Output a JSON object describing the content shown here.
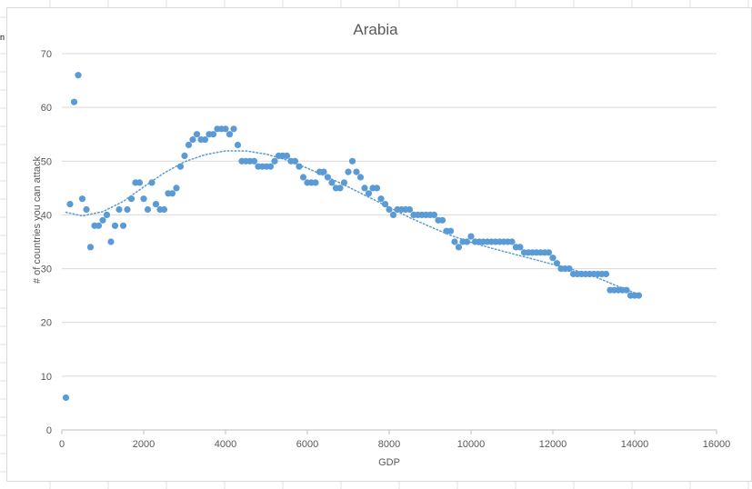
{
  "sheet": {
    "cell_fragment": "n"
  },
  "chart_data": {
    "type": "scatter",
    "title": "Arabia",
    "xlabel": "GDP",
    "ylabel": "# of countries you can attack",
    "xlim": [
      0,
      16000
    ],
    "ylim": [
      0,
      70
    ],
    "x_ticks": [
      "0",
      "2000",
      "4000",
      "6000",
      "8000",
      "10000",
      "12000",
      "14000",
      "16000"
    ],
    "y_ticks": [
      "0",
      "10",
      "20",
      "30",
      "40",
      "50",
      "60",
      "70"
    ],
    "grid": "horizontal",
    "legend": "none",
    "marker_color": "#5b9bd5",
    "trendline": {
      "style": "dotted",
      "color": "#5b9bd5",
      "kind": "polynomial"
    },
    "points": [
      [
        100,
        6
      ],
      [
        200,
        42
      ],
      [
        300,
        61
      ],
      [
        400,
        66
      ],
      [
        500,
        43
      ],
      [
        600,
        41
      ],
      [
        700,
        34
      ],
      [
        800,
        38
      ],
      [
        900,
        38
      ],
      [
        1000,
        39
      ],
      [
        1100,
        40
      ],
      [
        1200,
        35
      ],
      [
        1300,
        38
      ],
      [
        1400,
        41
      ],
      [
        1500,
        38
      ],
      [
        1600,
        41
      ],
      [
        1700,
        43
      ],
      [
        1800,
        46
      ],
      [
        1900,
        46
      ],
      [
        2000,
        43
      ],
      [
        2100,
        41
      ],
      [
        2200,
        46
      ],
      [
        2300,
        42
      ],
      [
        2400,
        41
      ],
      [
        2500,
        41
      ],
      [
        2600,
        44
      ],
      [
        2700,
        44
      ],
      [
        2800,
        45
      ],
      [
        2900,
        49
      ],
      [
        3000,
        51
      ],
      [
        3100,
        53
      ],
      [
        3200,
        54
      ],
      [
        3300,
        55
      ],
      [
        3400,
        54
      ],
      [
        3500,
        54
      ],
      [
        3600,
        55
      ],
      [
        3700,
        55
      ],
      [
        3800,
        56
      ],
      [
        3900,
        56
      ],
      [
        4000,
        56
      ],
      [
        4100,
        55
      ],
      [
        4200,
        56
      ],
      [
        4300,
        53
      ],
      [
        4400,
        50
      ],
      [
        4500,
        50
      ],
      [
        4600,
        50
      ],
      [
        4700,
        50
      ],
      [
        4800,
        49
      ],
      [
        4900,
        49
      ],
      [
        5000,
        49
      ],
      [
        5100,
        49
      ],
      [
        5200,
        50
      ],
      [
        5300,
        51
      ],
      [
        5400,
        51
      ],
      [
        5500,
        51
      ],
      [
        5600,
        50
      ],
      [
        5700,
        50
      ],
      [
        5800,
        49
      ],
      [
        5900,
        47
      ],
      [
        6000,
        46
      ],
      [
        6100,
        46
      ],
      [
        6200,
        46
      ],
      [
        6300,
        48
      ],
      [
        6400,
        48
      ],
      [
        6500,
        47
      ],
      [
        6600,
        46
      ],
      [
        6700,
        45
      ],
      [
        6800,
        45
      ],
      [
        6900,
        46
      ],
      [
        7000,
        48
      ],
      [
        7100,
        50
      ],
      [
        7200,
        48
      ],
      [
        7300,
        47
      ],
      [
        7400,
        45
      ],
      [
        7500,
        44
      ],
      [
        7600,
        45
      ],
      [
        7700,
        45
      ],
      [
        7800,
        43
      ],
      [
        7900,
        42
      ],
      [
        8000,
        41
      ],
      [
        8100,
        40
      ],
      [
        8200,
        41
      ],
      [
        8300,
        41
      ],
      [
        8400,
        41
      ],
      [
        8500,
        41
      ],
      [
        8600,
        40
      ],
      [
        8700,
        40
      ],
      [
        8800,
        40
      ],
      [
        8900,
        40
      ],
      [
        9000,
        40
      ],
      [
        9100,
        40
      ],
      [
        9200,
        39
      ],
      [
        9300,
        39
      ],
      [
        9400,
        37
      ],
      [
        9500,
        37
      ],
      [
        9600,
        35
      ],
      [
        9700,
        34
      ],
      [
        9800,
        35
      ],
      [
        9900,
        35
      ],
      [
        10000,
        36
      ],
      [
        10100,
        35
      ],
      [
        10200,
        35
      ],
      [
        10300,
        35
      ],
      [
        10400,
        35
      ],
      [
        10500,
        35
      ],
      [
        10600,
        35
      ],
      [
        10700,
        35
      ],
      [
        10800,
        35
      ],
      [
        10900,
        35
      ],
      [
        11000,
        35
      ],
      [
        11100,
        34
      ],
      [
        11200,
        34
      ],
      [
        11300,
        33
      ],
      [
        11400,
        33
      ],
      [
        11500,
        33
      ],
      [
        11600,
        33
      ],
      [
        11700,
        33
      ],
      [
        11800,
        33
      ],
      [
        11900,
        33
      ],
      [
        12000,
        32
      ],
      [
        12100,
        31
      ],
      [
        12200,
        30
      ],
      [
        12300,
        30
      ],
      [
        12400,
        30
      ],
      [
        12500,
        29
      ],
      [
        12600,
        29
      ],
      [
        12700,
        29
      ],
      [
        12800,
        29
      ],
      [
        12900,
        29
      ],
      [
        13000,
        29
      ],
      [
        13100,
        29
      ],
      [
        13200,
        29
      ],
      [
        13300,
        29
      ],
      [
        13400,
        26
      ],
      [
        13500,
        26
      ],
      [
        13600,
        26
      ],
      [
        13700,
        26
      ],
      [
        13800,
        26
      ],
      [
        13900,
        25
      ],
      [
        14000,
        25
      ],
      [
        14100,
        25
      ]
    ],
    "trend_points": [
      [
        100,
        40.5
      ],
      [
        500,
        39.8
      ],
      [
        1000,
        40.6
      ],
      [
        1500,
        42.5
      ],
      [
        2000,
        45.2
      ],
      [
        2500,
        47.8
      ],
      [
        3000,
        49.9
      ],
      [
        3500,
        51.2
      ],
      [
        4000,
        51.9
      ],
      [
        4500,
        51.9
      ],
      [
        5000,
        51.3
      ],
      [
        5500,
        50.2
      ],
      [
        6000,
        48.7
      ],
      [
        6500,
        47.0
      ],
      [
        7000,
        45.2
      ],
      [
        7500,
        43.3
      ],
      [
        8000,
        41.4
      ],
      [
        8500,
        39.5
      ],
      [
        9000,
        37.8
      ],
      [
        9500,
        36.2
      ],
      [
        10000,
        34.9
      ],
      [
        10500,
        33.8
      ],
      [
        11000,
        32.8
      ],
      [
        11500,
        31.8
      ],
      [
        12000,
        30.8
      ],
      [
        12500,
        29.8
      ],
      [
        13000,
        28.6
      ],
      [
        13500,
        27.0
      ],
      [
        14000,
        25.5
      ]
    ]
  }
}
